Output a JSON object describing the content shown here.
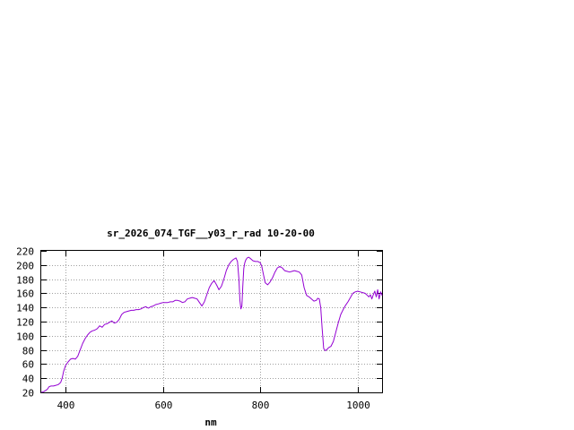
{
  "chart_data": {
    "type": "line",
    "title": "sr_2026_074_TGF__y03_r_rad 10-20-00",
    "xlabel": "nm",
    "ylabel": "",
    "xlim": [
      350,
      1050
    ],
    "ylim": [
      20,
      220
    ],
    "xticks": [
      400,
      600,
      800,
      1000
    ],
    "yticks": [
      20,
      40,
      60,
      80,
      100,
      120,
      140,
      160,
      180,
      200,
      220
    ],
    "grid": true,
    "line_color": "#9400d3",
    "series": [
      {
        "x": [
          350,
          355,
          360,
          363,
          366,
          370,
          375,
          380,
          385,
          390,
          393,
          396,
          400,
          405,
          410,
          415,
          420,
          425,
          430,
          435,
          440,
          445,
          450,
          455,
          460,
          465,
          470,
          475,
          480,
          485,
          490,
          495,
          500,
          505,
          510,
          515,
          520,
          525,
          530,
          535,
          540,
          545,
          550,
          555,
          560,
          565,
          570,
          575,
          580,
          585,
          590,
          595,
          600,
          605,
          610,
          615,
          620,
          625,
          630,
          635,
          640,
          645,
          650,
          655,
          660,
          665,
          670,
          675,
          680,
          685,
          690,
          695,
          700,
          705,
          710,
          715,
          720,
          725,
          730,
          735,
          740,
          745,
          750,
          753,
          756,
          758,
          760,
          762,
          764,
          766,
          768,
          770,
          773,
          776,
          780,
          785,
          790,
          795,
          800,
          803,
          806,
          810,
          815,
          820,
          825,
          830,
          835,
          840,
          845,
          850,
          855,
          860,
          865,
          870,
          875,
          880,
          885,
          890,
          895,
          900,
          905,
          910,
          915,
          918,
          921,
          924,
          927,
          930,
          933,
          936,
          940,
          945,
          950,
          955,
          960,
          965,
          970,
          975,
          980,
          985,
          990,
          995,
          1000,
          1005,
          1010,
          1015,
          1020,
          1023,
          1026,
          1029,
          1032,
          1035,
          1038,
          1041,
          1044,
          1047,
          1050
        ],
        "y": [
          20,
          21,
          23,
          25,
          28,
          29,
          29,
          30,
          31,
          34,
          40,
          50,
          58,
          63,
          67,
          68,
          67,
          71,
          80,
          89,
          96,
          101,
          105,
          107,
          108,
          110,
          114,
          112,
          116,
          117,
          119,
          121,
          118,
          119,
          123,
          130,
          133,
          134,
          135,
          136,
          136,
          137,
          137,
          138,
          140,
          141,
          139,
          141,
          142,
          144,
          145,
          146,
          147,
          147,
          147,
          148,
          148,
          150,
          150,
          149,
          147,
          148,
          152,
          153,
          154,
          153,
          152,
          147,
          142,
          148,
          158,
          168,
          174,
          178,
          172,
          165,
          170,
          180,
          192,
          200,
          205,
          208,
          210,
          205,
          180,
          150,
          138,
          142,
          170,
          195,
          203,
          207,
          210,
          211,
          209,
          206,
          205,
          205,
          203,
          198,
          188,
          175,
          172,
          176,
          182,
          190,
          196,
          198,
          196,
          192,
          191,
          190,
          191,
          192,
          191,
          190,
          186,
          168,
          157,
          155,
          152,
          149,
          150,
          153,
          152,
          140,
          110,
          82,
          79,
          80,
          83,
          85,
          92,
          105,
          118,
          130,
          137,
          143,
          148,
          154,
          160,
          162,
          163,
          162,
          161,
          160,
          157,
          155,
          158,
          152,
          158,
          163,
          155,
          165,
          152,
          162,
          157
        ]
      }
    ]
  }
}
